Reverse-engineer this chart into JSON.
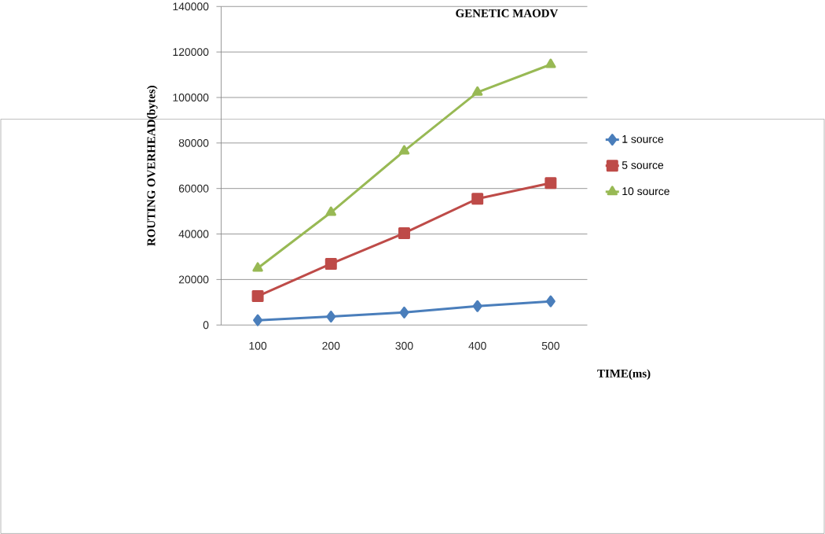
{
  "chart_data": {
    "type": "line",
    "title": "GENETIC MAODV",
    "xlabel": "TIME(ms)",
    "ylabel": "ROUTING OVERHEAD(bytes)",
    "categories": [
      "100",
      "200",
      "300",
      "400",
      "500"
    ],
    "series": [
      {
        "name": "1 source",
        "color": "#4a7ebb",
        "marker": "diamond",
        "values": [
          2100,
          3700,
          5500,
          8300,
          10400
        ]
      },
      {
        "name": "5 source",
        "color": "#be4b48",
        "marker": "square",
        "values": [
          12700,
          26900,
          40400,
          55500,
          62400
        ]
      },
      {
        "name": "10 source",
        "color": "#98b954",
        "marker": "triangle",
        "values": [
          25000,
          49500,
          76500,
          102300,
          114500
        ]
      }
    ],
    "ylim": [
      0,
      140000
    ],
    "yticks": [
      0,
      20000,
      40000,
      60000,
      80000,
      100000,
      120000,
      140000
    ],
    "grid": "y",
    "legend": "right"
  }
}
